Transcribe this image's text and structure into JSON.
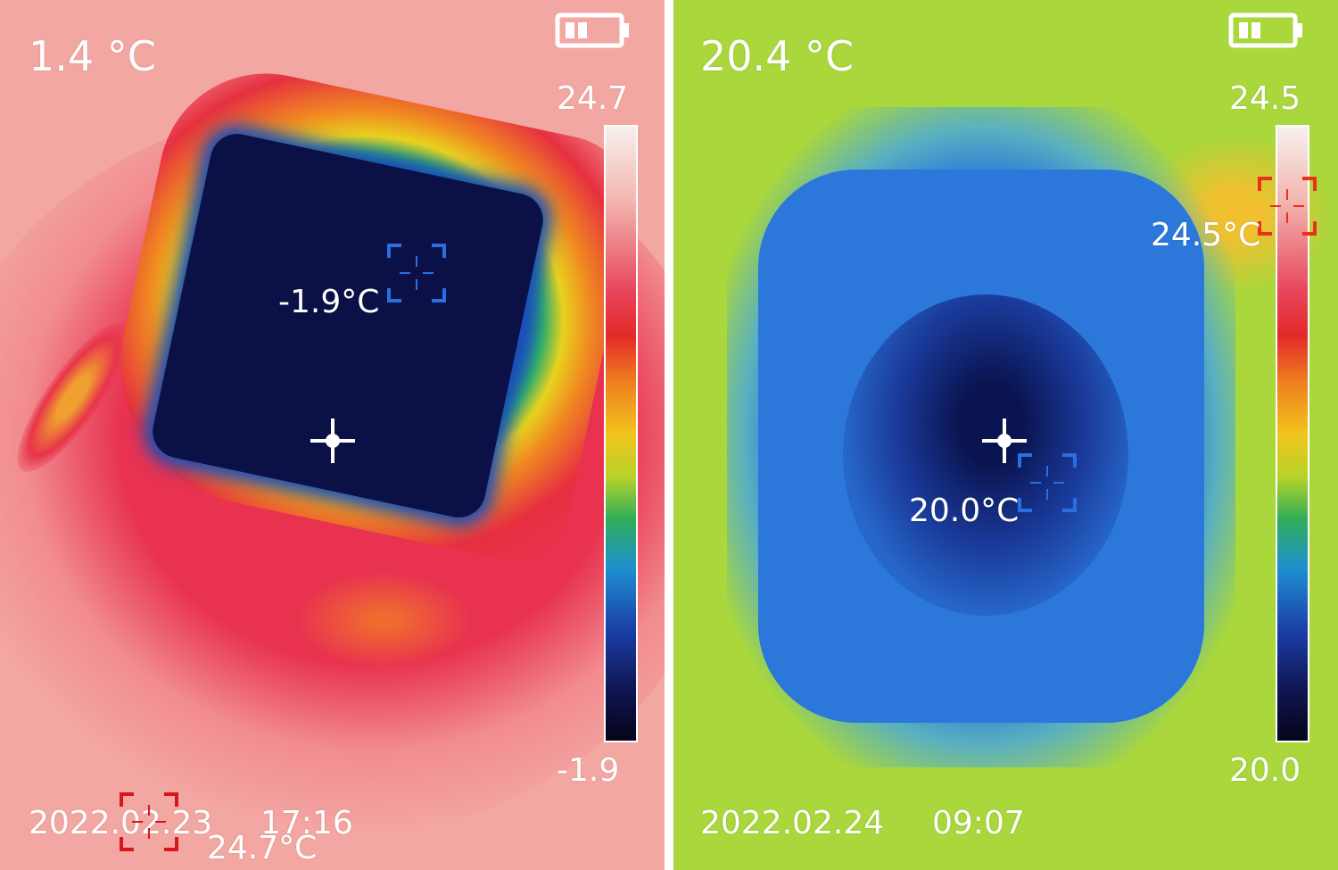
{
  "left": {
    "center_temp": "1.4 °C",
    "scale_max": "24.7",
    "scale_min": "-1.9",
    "min_spot_temp": "-1.9°C",
    "max_spot_temp": "24.7°C",
    "date": "2022.02.23",
    "time": "17:16",
    "min_marker_color": "#2a6fe0",
    "max_marker_color": "#d9141c"
  },
  "right": {
    "center_temp": "20.4 °C",
    "scale_max": "24.5",
    "scale_min": "20.0",
    "min_spot_temp": "20.0°C",
    "max_spot_temp": "24.5°C",
    "date": "2022.02.24",
    "time": "09:07",
    "min_marker_color": "#2a6fe0",
    "max_marker_color": "#e8321c"
  },
  "icons": [
    "battery-icon",
    "crosshair-icon",
    "min-temp-reticle-icon",
    "max-temp-reticle-icon"
  ]
}
